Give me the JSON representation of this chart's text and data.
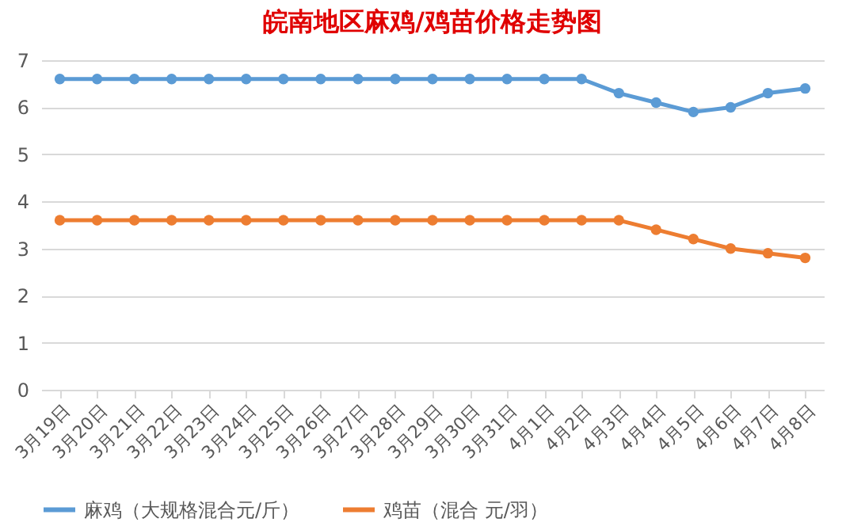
{
  "chart_data": {
    "type": "line",
    "title": "皖南地区麻鸡/鸡苗价格走势图",
    "categories": [
      "3月19日",
      "3月20日",
      "3月21日",
      "3月22日",
      "3月23日",
      "3月24日",
      "3月25日",
      "3月26日",
      "3月27日",
      "3月28日",
      "3月29日",
      "3月30日",
      "3月31日",
      "4月1日",
      "4月2日",
      "4月3日",
      "4月4日",
      "4月5日",
      "4月6日",
      "4月7日",
      "4月8日"
    ],
    "series": [
      {
        "name": "麻鸡（大规格混合元/斤）",
        "color": "#5b9bd5",
        "values": [
          6.6,
          6.6,
          6.6,
          6.6,
          6.6,
          6.6,
          6.6,
          6.6,
          6.6,
          6.6,
          6.6,
          6.6,
          6.6,
          6.6,
          6.6,
          6.3,
          6.1,
          5.9,
          6.0,
          6.3,
          6.4
        ]
      },
      {
        "name": "鸡苗（混合 元/羽）",
        "color": "#ed7d31",
        "values": [
          3.6,
          3.6,
          3.6,
          3.6,
          3.6,
          3.6,
          3.6,
          3.6,
          3.6,
          3.6,
          3.6,
          3.6,
          3.6,
          3.6,
          3.6,
          3.6,
          3.4,
          3.2,
          3.0,
          2.9,
          2.8
        ]
      }
    ],
    "ylim": [
      0,
      7
    ],
    "yticks": [
      0,
      1,
      2,
      3,
      4,
      5,
      6,
      7
    ],
    "grid": "y",
    "legend": "bottom",
    "marker": "circle",
    "line_style": "solid"
  }
}
